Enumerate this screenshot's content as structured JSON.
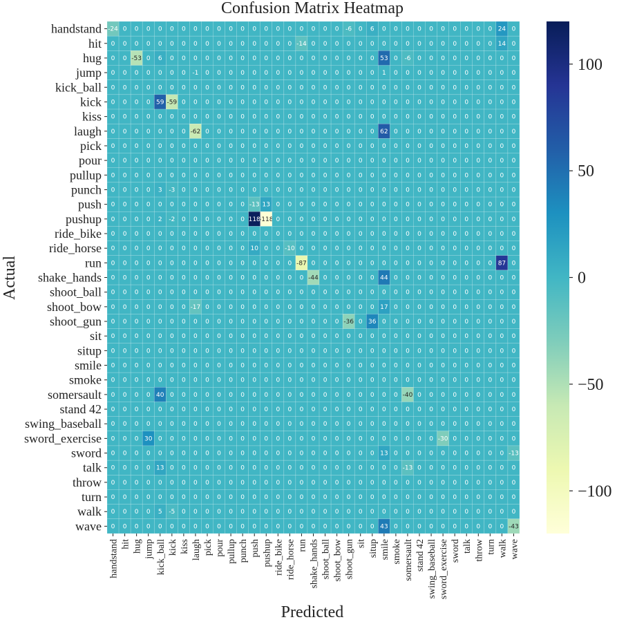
{
  "chart_data": {
    "type": "heatmap",
    "title": "Confusion Matrix Heatmap",
    "xlabel": "Predicted",
    "ylabel": "Actual",
    "labels": [
      "handstand",
      "hit",
      "hug",
      "jump",
      "kick_ball",
      "kick",
      "kiss",
      "laugh",
      "pick",
      "pour",
      "pullup",
      "punch",
      "push",
      "pushup",
      "ride_bike",
      "ride_horse",
      "run",
      "shake_hands",
      "shoot_ball",
      "shoot_bow",
      "shoot_gun",
      "sit",
      "situp",
      "smile",
      "smoke",
      "somersault",
      "stand 42",
      "swing_baseball",
      "sword_exercise",
      "sword",
      "talk",
      "throw",
      "turn",
      "walk",
      "wave"
    ],
    "color_range": [
      -120,
      120
    ],
    "colorbar_ticks": [
      100,
      50,
      0,
      -50,
      -100
    ],
    "colorbar_tick_labels": [
      "100",
      "50",
      "0",
      "−50",
      "−100"
    ],
    "colormap": [
      "#ffffd9",
      "#edf8b1",
      "#c7e9b4",
      "#7fcdbb",
      "#41b6c4",
      "#1d91c0",
      "#225ea8",
      "#253494",
      "#081d58"
    ],
    "nonzero": [
      [
        0,
        0,
        -24
      ],
      [
        0,
        20,
        -6
      ],
      [
        0,
        22,
        6
      ],
      [
        0,
        33,
        24
      ],
      [
        1,
        16,
        -14
      ],
      [
        1,
        33,
        14
      ],
      [
        2,
        2,
        -53
      ],
      [
        2,
        4,
        6
      ],
      [
        2,
        23,
        53
      ],
      [
        2,
        25,
        -6
      ],
      [
        3,
        7,
        -1
      ],
      [
        3,
        23,
        1
      ],
      [
        5,
        4,
        59
      ],
      [
        5,
        5,
        -59
      ],
      [
        7,
        7,
        -62
      ],
      [
        7,
        23,
        62
      ],
      [
        11,
        4,
        3
      ],
      [
        11,
        5,
        -3
      ],
      [
        12,
        12,
        -13
      ],
      [
        12,
        13,
        13
      ],
      [
        13,
        4,
        2
      ],
      [
        13,
        5,
        -2
      ],
      [
        13,
        12,
        118
      ],
      [
        13,
        13,
        -118
      ],
      [
        15,
        12,
        10
      ],
      [
        15,
        15,
        -10
      ],
      [
        16,
        16,
        -87
      ],
      [
        16,
        33,
        87
      ],
      [
        17,
        17,
        -44
      ],
      [
        17,
        23,
        44
      ],
      [
        19,
        7,
        -17
      ],
      [
        19,
        23,
        17
      ],
      [
        20,
        20,
        -36
      ],
      [
        20,
        22,
        36
      ],
      [
        25,
        4,
        40
      ],
      [
        25,
        25,
        -40
      ],
      [
        28,
        3,
        30
      ],
      [
        28,
        28,
        -30
      ],
      [
        29,
        23,
        13
      ],
      [
        29,
        34,
        -13
      ],
      [
        30,
        4,
        13
      ],
      [
        30,
        25,
        -13
      ],
      [
        33,
        4,
        5
      ],
      [
        33,
        5,
        -5
      ],
      [
        34,
        23,
        43
      ],
      [
        34,
        34,
        -43
      ]
    ]
  }
}
